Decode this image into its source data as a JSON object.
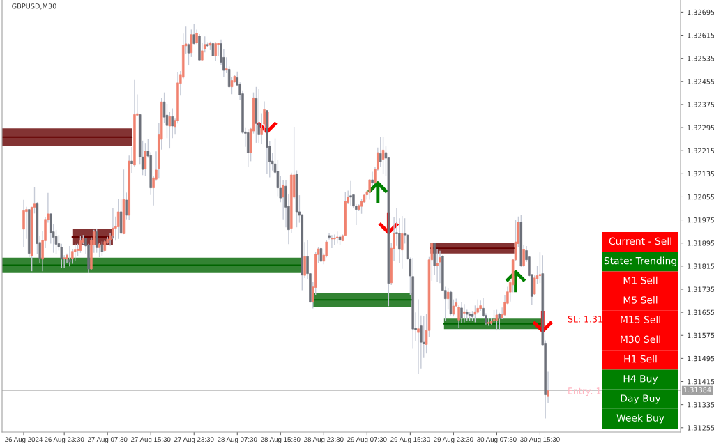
{
  "chart_data": [
    {
      "type": "candlestick",
      "title": "GBPUSD,M30",
      "colors": [
        "#f0826f",
        "#f0826f",
        "#6c7079",
        "#f0826f",
        "#f0826f",
        "#6c7079",
        "#6c7079",
        "#f0826f",
        "#f0826f",
        "#f0826f",
        "#6c7079",
        "#6c7079",
        "#6c7079",
        "#6c7079",
        "#6c7079",
        "#f0826f",
        "#f0826f",
        "#6c7079",
        "#f0826f",
        "#f0826f",
        "#f0826f",
        "#f0826f",
        "#f0826f",
        "#6c7079",
        "#6c7079",
        "#f0826f",
        "#f0826f",
        "#6c7079",
        "#f0826f",
        "#6c7079",
        "#f0826f",
        "#f0826f",
        "#f0826f",
        "#f0826f",
        "#f0826f",
        "#f0826f",
        "#6c7079",
        "#f0826f",
        "#6c7079",
        "#f0826f",
        "#6c7079",
        "#f0826f",
        "#f0826f",
        "#6c7079",
        "#6c7079",
        "#f0826f",
        "#6c7079",
        "#6c7079",
        "#f0826f",
        "#f0826f",
        "#f0826f",
        "#f0826f",
        "#6c7079",
        "#6c7079",
        "#f0826f",
        "#6c7079",
        "#f0826f",
        "#f0826f",
        "#f0826f",
        "#f0826f",
        "#f0826f",
        "#6c7079",
        "#f0826f",
        "#6c7079",
        "#f0826f",
        "#6c7079",
        "#f0826f",
        "#f0826f",
        "#6c7079",
        "#f0826f",
        "#6c7079",
        "#f0826f",
        "#f0826f",
        "#6c7079",
        "#6c7079",
        "#f0826f",
        "#6c7079",
        "#f0826f",
        "#f0826f",
        "#6c7079",
        "#6c7079",
        "#6c7079",
        "#6c7079",
        "#6c7079",
        "#f0826f",
        "#f0826f",
        "#6c7079",
        "#6c7079",
        "#f0826f",
        "#f0826f",
        "#6c7079",
        "#6c7079",
        "#6c7079",
        "#6c7079",
        "#6c7079",
        "#6c7079",
        "#f0826f",
        "#6c7079",
        "#6c7079",
        "#f0826f",
        "#f0826f",
        "#6c7079",
        "#6c7079",
        "#6c7079",
        "#f0826f",
        "#6c7079",
        "#6c7079",
        "#f0826f",
        "#f0826f",
        "#f0826f",
        "#6c7079",
        "#f0826f",
        "#f0826f",
        "#6c7079",
        "#f0826f",
        "#f0826f",
        "#f0826f",
        "#6c7079",
        "#f0826f",
        "#f0826f",
        "#f0826f",
        "#6c7079",
        "#6c7079",
        "#6c7079",
        "#f0826f",
        "#f0826f",
        "#f0826f",
        "#f0826f",
        "#f0826f",
        "#6c7079",
        "#f0826f",
        "#f0826f",
        "#6c7079",
        "#f0826f",
        "#6c7079",
        "#6c7079",
        "#f0826f",
        "#f0826f",
        "#6c7079",
        "#6c7079",
        "#f0826f",
        "#6c7079",
        "#6c7079",
        "#6c7079",
        "#6c7079",
        "#6c7079",
        "#f0826f",
        "#6c7079",
        "#6c7079",
        "#f0826f",
        "#f0826f",
        "#f0826f",
        "#6c7079",
        "#f0826f",
        "#f0826f",
        "#6c7079",
        "#6c7079",
        "#f0826f",
        "#6c7079",
        "#f0826f",
        "#f0826f",
        "#f0826f",
        "#6c7079",
        "#f0826f",
        "#6c7079",
        "#6c7079",
        "#6c7079",
        "#f0826f",
        "#f0826f",
        "#f0826f",
        "#6c7079",
        "#6c7079",
        "#f0826f",
        "#f0826f",
        "#f0826f",
        "#f0826f",
        "#6c7079",
        "#f0826f",
        "#f0826f",
        "#f0826f",
        "#f0826f",
        "#f0826f",
        "#f0826f",
        "#f0826f",
        "#6c7079",
        "#f0826f",
        "#6c7079",
        "#6c7079",
        "#6c7079",
        "#f0826f",
        "#f0826f",
        "#f0826f",
        "#6c7079",
        "#6c7079",
        "#f0826f"
      ],
      "x": [
        "2024-08-26T16:00",
        "2024-08-26T16:30",
        "2024-08-26T17:00",
        "2024-08-26T17:30",
        "2024-08-26T18:00",
        "2024-08-26T18:30",
        "2024-08-26T19:00",
        "2024-08-26T19:30",
        "2024-08-26T20:00",
        "2024-08-26T20:30",
        "2024-08-26T21:00",
        "2024-08-26T21:30",
        "2024-08-26T22:00",
        "2024-08-26T22:30",
        "2024-08-26T23:00",
        "2024-08-26T23:30",
        "2024-08-27T00:00",
        "2024-08-27T00:30",
        "2024-08-27T01:00",
        "2024-08-27T01:30",
        "2024-08-27T02:00",
        "2024-08-27T02:30",
        "2024-08-27T03:00",
        "2024-08-27T03:30",
        "2024-08-27T04:00",
        "2024-08-27T04:30",
        "2024-08-27T05:00",
        "2024-08-27T05:30",
        "2024-08-27T06:00",
        "2024-08-27T06:30",
        "2024-08-27T07:00",
        "2024-08-27T07:30",
        "2024-08-27T08:00",
        "2024-08-27T08:30",
        "2024-08-27T09:00",
        "2024-08-27T09:30",
        "2024-08-27T10:00",
        "2024-08-27T10:30",
        "2024-08-27T11:00",
        "2024-08-27T11:30",
        "2024-08-27T12:00",
        "2024-08-27T12:30",
        "2024-08-27T13:00",
        "2024-08-27T13:30",
        "2024-08-27T14:00",
        "2024-08-27T14:30",
        "2024-08-27T15:00",
        "2024-08-27T15:30",
        "2024-08-27T16:00",
        "2024-08-27T16:30",
        "2024-08-27T17:00",
        "2024-08-27T17:30",
        "2024-08-27T18:00",
        "2024-08-27T18:30",
        "2024-08-27T19:00",
        "2024-08-27T19:30",
        "2024-08-27T20:00",
        "2024-08-27T20:30",
        "2024-08-27T21:00",
        "2024-08-27T21:30",
        "2024-08-27T22:00",
        "2024-08-27T22:30",
        "2024-08-27T23:00",
        "2024-08-27T23:30",
        "2024-08-28T00:00",
        "2024-08-28T00:30",
        "2024-08-28T01:00",
        "2024-08-28T01:30",
        "2024-08-28T02:00",
        "2024-08-28T02:30",
        "2024-08-28T03:00",
        "2024-08-28T03:30",
        "2024-08-28T04:00",
        "2024-08-28T04:30",
        "2024-08-28T05:00",
        "2024-08-28T05:30",
        "2024-08-28T06:00",
        "2024-08-28T06:30",
        "2024-08-28T07:00",
        "2024-08-28T07:30",
        "2024-08-28T08:00",
        "2024-08-28T08:30",
        "2024-08-28T09:00",
        "2024-08-28T09:30",
        "2024-08-28T10:00",
        "2024-08-28T10:30",
        "2024-08-28T11:00",
        "2024-08-28T11:30",
        "2024-08-28T12:00",
        "2024-08-28T12:30",
        "2024-08-28T13:00",
        "2024-08-28T13:30",
        "2024-08-28T14:00",
        "2024-08-28T14:30",
        "2024-08-28T15:00",
        "2024-08-28T15:30",
        "2024-08-28T16:00",
        "2024-08-28T16:30",
        "2024-08-28T17:00",
        "2024-08-28T17:30",
        "2024-08-28T18:00",
        "2024-08-28T18:30",
        "2024-08-28T19:00",
        "2024-08-28T19:30",
        "2024-08-28T20:00",
        "2024-08-28T20:30",
        "2024-08-28T21:00",
        "2024-08-28T21:30",
        "2024-08-28T22:00",
        "2024-08-28T22:30",
        "2024-08-28T23:00",
        "2024-08-28T23:30",
        "2024-08-29T00:00",
        "2024-08-29T00:30",
        "2024-08-29T01:00",
        "2024-08-29T01:30",
        "2024-08-29T02:00",
        "2024-08-29T02:30",
        "2024-08-29T03:00",
        "2024-08-29T03:30",
        "2024-08-29T04:00",
        "2024-08-29T04:30",
        "2024-08-29T05:00",
        "2024-08-29T05:30",
        "2024-08-29T06:00",
        "2024-08-29T06:30",
        "2024-08-29T07:00",
        "2024-08-29T07:30",
        "2024-08-29T08:00",
        "2024-08-29T08:30",
        "2024-08-29T09:00",
        "2024-08-29T09:30",
        "2024-08-29T10:00",
        "2024-08-29T10:30",
        "2024-08-29T11:00",
        "2024-08-29T11:30",
        "2024-08-29T12:00",
        "2024-08-29T12:30",
        "2024-08-29T13:00",
        "2024-08-29T13:30",
        "2024-08-29T14:00",
        "2024-08-29T14:30",
        "2024-08-29T15:00",
        "2024-08-29T15:30",
        "2024-08-29T16:00",
        "2024-08-29T16:30",
        "2024-08-29T17:00",
        "2024-08-29T17:30",
        "2024-08-29T18:00",
        "2024-08-29T18:30",
        "2024-08-29T19:00",
        "2024-08-29T19:30",
        "2024-08-29T20:00",
        "2024-08-29T20:30",
        "2024-08-29T21:00",
        "2024-08-29T21:30",
        "2024-08-29T22:00",
        "2024-08-29T22:30",
        "2024-08-29T23:00",
        "2024-08-29T23:30",
        "2024-08-30T00:00",
        "2024-08-30T00:30",
        "2024-08-30T01:00",
        "2024-08-30T01:30",
        "2024-08-30T02:00",
        "2024-08-30T02:30",
        "2024-08-30T03:00",
        "2024-08-30T03:30",
        "2024-08-30T04:00",
        "2024-08-30T04:30",
        "2024-08-30T05:00",
        "2024-08-30T05:30",
        "2024-08-30T06:00",
        "2024-08-30T06:30",
        "2024-08-30T07:00",
        "2024-08-30T07:30",
        "2024-08-30T08:00",
        "2024-08-30T08:30",
        "2024-08-30T09:00",
        "2024-08-30T09:30",
        "2024-08-30T10:00",
        "2024-08-30T10:30",
        "2024-08-30T11:00",
        "2024-08-30T11:30",
        "2024-08-30T12:00",
        "2024-08-30T12:30",
        "2024-08-30T13:00",
        "2024-08-30T13:30",
        "2024-08-30T14:00",
        "2024-08-30T14:30",
        "2024-08-30T15:00",
        "2024-08-30T15:30",
        "2024-08-30T16:00",
        "2024-08-30T16:30",
        "2024-08-30T17:00"
      ],
      "ohlc": [
        [
          1.31943,
          1.32043,
          1.31883,
          1.32007
        ],
        [
          1.32004,
          1.32019,
          1.31911,
          1.32011
        ],
        [
          1.32011,
          1.32011,
          1.31847,
          1.31859
        ],
        [
          1.31851,
          1.32019,
          1.31799,
          1.32019
        ],
        [
          1.32019,
          1.32086,
          1.31999,
          1.3203
        ],
        [
          1.32031,
          1.32035,
          1.31859,
          1.31893
        ],
        [
          1.31897,
          1.31919,
          1.31827,
          1.31841
        ],
        [
          1.31839,
          1.31935,
          1.31799,
          1.31905
        ],
        [
          1.31903,
          1.31983,
          1.31879,
          1.31977
        ],
        [
          1.31975,
          1.32067,
          1.31967,
          1.31996
        ],
        [
          1.31996,
          1.31996,
          1.31895,
          1.3193
        ],
        [
          1.31934,
          1.31958,
          1.31863,
          1.31915
        ],
        [
          1.31918,
          1.31939,
          1.31859,
          1.31891
        ],
        [
          1.31893,
          1.31921,
          1.31871,
          1.31881
        ],
        [
          1.31881,
          1.31891,
          1.31811,
          1.31839
        ],
        [
          1.31841,
          1.31851,
          1.31811,
          1.31844
        ],
        [
          1.31839,
          1.31857,
          1.31827,
          1.31853
        ],
        [
          1.31837,
          1.31883,
          1.31816,
          1.31829
        ],
        [
          1.31841,
          1.31871,
          1.31825,
          1.31866
        ],
        [
          1.31865,
          1.31891,
          1.31835,
          1.31871
        ],
        [
          1.31869,
          1.31891,
          1.31851,
          1.31874
        ],
        [
          1.31869,
          1.31919,
          1.31863,
          1.31903
        ],
        [
          1.31898,
          1.31921,
          1.31893,
          1.3191
        ],
        [
          1.31911,
          1.31911,
          1.31859,
          1.31885
        ],
        [
          1.31889,
          1.31891,
          1.31792,
          1.31805
        ],
        [
          1.31805,
          1.31913,
          1.31805,
          1.31905
        ],
        [
          1.31889,
          1.31939,
          1.31863,
          1.31934
        ],
        [
          1.31934,
          1.31943,
          1.31863,
          1.31879
        ],
        [
          1.31879,
          1.31895,
          1.31847,
          1.31892
        ],
        [
          1.3189,
          1.31899,
          1.31851,
          1.31865
        ],
        [
          1.31869,
          1.31903,
          1.31867,
          1.319
        ],
        [
          1.31897,
          1.31915,
          1.31895,
          1.31908
        ],
        [
          1.31905,
          1.31927,
          1.31887,
          1.31921
        ],
        [
          1.31922,
          1.32014,
          1.31911,
          1.31947
        ],
        [
          1.31946,
          1.31985,
          1.31905,
          1.31953
        ],
        [
          1.31951,
          1.32047,
          1.31911,
          1.32003
        ],
        [
          1.32003,
          1.32047,
          1.31927,
          1.31929
        ],
        [
          1.31927,
          1.32148,
          1.31927,
          1.32046
        ],
        [
          1.32044,
          1.32068,
          1.31979,
          1.31991
        ],
        [
          1.31991,
          1.32196,
          1.31977,
          1.32179
        ],
        [
          1.32179,
          1.32226,
          1.3214,
          1.32169
        ],
        [
          1.32165,
          1.32458,
          1.3216,
          1.3234
        ],
        [
          1.32338,
          1.32408,
          1.32336,
          1.32343
        ],
        [
          1.3234,
          1.3234,
          1.32168,
          1.32193
        ],
        [
          1.32193,
          1.32248,
          1.32132,
          1.3215
        ],
        [
          1.32152,
          1.3224,
          1.32129,
          1.32213
        ],
        [
          1.32214,
          1.32254,
          1.32192,
          1.32196
        ],
        [
          1.32198,
          1.32208,
          1.32063,
          1.32086
        ],
        [
          1.32086,
          1.32126,
          1.32027,
          1.32121
        ],
        [
          1.32116,
          1.32211,
          1.32112,
          1.32148
        ],
        [
          1.32153,
          1.32308,
          1.3212,
          1.3227
        ],
        [
          1.32254,
          1.32396,
          1.3222,
          1.32384
        ],
        [
          1.32384,
          1.32415,
          1.32312,
          1.32331
        ],
        [
          1.32338,
          1.32376,
          1.3226,
          1.32302
        ],
        [
          1.323,
          1.32348,
          1.32224,
          1.32333
        ],
        [
          1.32333,
          1.3236,
          1.3226,
          1.323
        ],
        [
          1.32298,
          1.32324,
          1.32272,
          1.3232
        ],
        [
          1.32319,
          1.32485,
          1.32311,
          1.3245
        ],
        [
          1.32448,
          1.32489,
          1.32407,
          1.32479
        ],
        [
          1.32469,
          1.32619,
          1.32463,
          1.32581
        ],
        [
          1.32578,
          1.32643,
          1.32553,
          1.32585
        ],
        [
          1.32583,
          1.32585,
          1.32514,
          1.32553
        ],
        [
          1.32554,
          1.32633,
          1.32541,
          1.32617
        ],
        [
          1.32617,
          1.32653,
          1.32585,
          1.32586
        ],
        [
          1.32589,
          1.32633,
          1.32586,
          1.32621
        ],
        [
          1.32612,
          1.32617,
          1.32529,
          1.32529
        ],
        [
          1.32529,
          1.32586,
          1.32527,
          1.32561
        ],
        [
          1.32567,
          1.32609,
          1.32557,
          1.32583
        ],
        [
          1.32583,
          1.32589,
          1.32575,
          1.32578
        ],
        [
          1.3258,
          1.32591,
          1.32565,
          1.32588
        ],
        [
          1.32586,
          1.32589,
          1.32543,
          1.32543
        ],
        [
          1.32543,
          1.3259,
          1.32527,
          1.32586
        ],
        [
          1.32582,
          1.32588,
          1.32543,
          1.32588
        ],
        [
          1.32586,
          1.32598,
          1.32514,
          1.32521
        ],
        [
          1.32538,
          1.32564,
          1.32471,
          1.32493
        ],
        [
          1.32494,
          1.32537,
          1.32485,
          1.32499
        ],
        [
          1.32497,
          1.32505,
          1.32436,
          1.32436
        ],
        [
          1.32436,
          1.32469,
          1.32412,
          1.32458
        ],
        [
          1.32453,
          1.32477,
          1.32452,
          1.32473
        ],
        [
          1.32468,
          1.32487,
          1.32442,
          1.32442
        ],
        [
          1.32446,
          1.3245,
          1.32391,
          1.32408
        ],
        [
          1.32412,
          1.32422,
          1.32274,
          1.32278
        ],
        [
          1.3228,
          1.32294,
          1.3223,
          1.32275
        ],
        [
          1.32277,
          1.32288,
          1.3216,
          1.32208
        ],
        [
          1.32208,
          1.32294,
          1.3218,
          1.3229
        ],
        [
          1.32283,
          1.32415,
          1.32276,
          1.32398
        ],
        [
          1.32396,
          1.32434,
          1.32244,
          1.32309
        ],
        [
          1.32309,
          1.32428,
          1.32244,
          1.3227
        ],
        [
          1.3227,
          1.32343,
          1.3224,
          1.32292
        ],
        [
          1.32307,
          1.32384,
          1.3228,
          1.32357
        ],
        [
          1.32354,
          1.32354,
          1.32136,
          1.32226
        ],
        [
          1.3223,
          1.32246,
          1.32124,
          1.32177
        ],
        [
          1.32179,
          1.32206,
          1.32148,
          1.32168
        ],
        [
          1.32169,
          1.32256,
          1.32136,
          1.3214
        ],
        [
          1.32143,
          1.32182,
          1.32059,
          1.32086
        ],
        [
          1.32085,
          1.32126,
          1.32038,
          1.32051
        ],
        [
          1.32054,
          1.32112,
          1.31979,
          1.32095
        ],
        [
          1.32092,
          1.32112,
          1.31951,
          1.32019
        ],
        [
          1.32022,
          1.32063,
          1.31893,
          1.31941
        ],
        [
          1.31946,
          1.32137,
          1.31931,
          1.32131
        ],
        [
          1.32054,
          1.32296,
          1.32049,
          1.32131
        ],
        [
          1.32134,
          1.32145,
          1.31951,
          1.32003
        ],
        [
          1.32003,
          1.32059,
          1.31967,
          1.31991
        ],
        [
          1.31993,
          1.31993,
          1.31733,
          1.31784
        ],
        [
          1.31783,
          1.31897,
          1.31775,
          1.31848
        ],
        [
          1.31848,
          1.31905,
          1.31771,
          1.31789
        ],
        [
          1.31789,
          1.31789,
          1.3169,
          1.3169
        ],
        [
          1.3169,
          1.3176,
          1.3167,
          1.31743
        ],
        [
          1.31741,
          1.31863,
          1.31715,
          1.31856
        ],
        [
          1.31855,
          1.31879,
          1.31827,
          1.31875
        ],
        [
          1.31876,
          1.31877,
          1.31831,
          1.31832
        ],
        [
          1.31832,
          1.31858,
          1.31823,
          1.31853
        ],
        [
          1.31851,
          1.31903,
          1.31847,
          1.31899
        ],
        [
          1.31921,
          1.31929,
          1.31909,
          1.31915
        ],
        [
          1.31909,
          1.31921,
          1.31879,
          1.31912
        ],
        [
          1.31909,
          1.31923,
          1.31891,
          1.31912
        ],
        [
          1.31913,
          1.31933,
          1.31895,
          1.31916
        ],
        [
          1.31916,
          1.31921,
          1.31891,
          1.31905
        ],
        [
          1.31903,
          1.31923,
          1.31903,
          1.31921
        ],
        [
          1.31922,
          1.32071,
          1.31921,
          1.32039
        ],
        [
          1.32035,
          1.32075,
          1.32031,
          1.32055
        ],
        [
          1.32059,
          1.32108,
          1.32027,
          1.32054
        ],
        [
          1.32062,
          1.32062,
          1.32019,
          1.32023
        ],
        [
          1.32023,
          1.32027,
          1.31959,
          1.32011
        ],
        [
          1.32011,
          1.32027,
          1.32007,
          1.32025
        ],
        [
          1.32022,
          1.32047,
          1.31998,
          1.32039
        ],
        [
          1.32037,
          1.32063,
          1.32035,
          1.32061
        ],
        [
          1.32062,
          1.32075,
          1.32047,
          1.32073
        ],
        [
          1.32071,
          1.32115,
          1.32047,
          1.32114
        ],
        [
          1.32114,
          1.3214,
          1.32095,
          1.32103
        ],
        [
          1.32105,
          1.32156,
          1.32103,
          1.3215
        ],
        [
          1.3215,
          1.32224,
          1.32148,
          1.32208
        ],
        [
          1.32205,
          1.3226,
          1.3216,
          1.32177
        ],
        [
          1.32185,
          1.3226,
          1.32136,
          1.32217
        ],
        [
          1.32208,
          1.32228,
          1.32128,
          1.32189
        ],
        [
          1.3219,
          1.32192,
          1.31678,
          1.31755
        ],
        [
          1.31757,
          1.31895,
          1.31751,
          1.31877
        ],
        [
          1.31875,
          1.31983,
          1.31835,
          1.31929
        ],
        [
          1.31931,
          1.32014,
          1.31887,
          1.31927
        ],
        [
          1.31929,
          1.31979,
          1.31827,
          1.31873
        ],
        [
          1.31871,
          1.31987,
          1.31807,
          1.31927
        ],
        [
          1.31927,
          1.31979,
          1.31895,
          1.31923
        ],
        [
          1.31923,
          1.31923,
          1.31839,
          1.3184
        ],
        [
          1.3184,
          1.31843,
          1.31715,
          1.31781
        ],
        [
          1.31779,
          1.31842,
          1.3153,
          1.31597
        ],
        [
          1.31601,
          1.31653,
          1.31558,
          1.31595
        ],
        [
          1.31585,
          1.31698,
          1.31442,
          1.31598
        ],
        [
          1.31608,
          1.31642,
          1.31462,
          1.31551
        ],
        [
          1.31551,
          1.3164,
          1.31498,
          1.31547
        ],
        [
          1.31543,
          1.31648,
          1.31514,
          1.31592
        ],
        [
          1.31592,
          1.31845,
          1.3157,
          1.31837
        ],
        [
          1.31837,
          1.31895,
          1.31766,
          1.31895
        ],
        [
          1.31895,
          1.31895,
          1.31786,
          1.31816
        ],
        [
          1.31816,
          1.31872,
          1.31762,
          1.31825
        ],
        [
          1.31829,
          1.31867,
          1.31758,
          1.31845
        ],
        [
          1.31849,
          1.31851,
          1.3173,
          1.31731
        ],
        [
          1.31731,
          1.31742,
          1.31626,
          1.31702
        ],
        [
          1.31702,
          1.31738,
          1.31666,
          1.31725
        ],
        [
          1.31725,
          1.31729,
          1.31646,
          1.3165
        ],
        [
          1.31648,
          1.31698,
          1.31642,
          1.31677
        ],
        [
          1.31677,
          1.31701,
          1.31674,
          1.31688
        ],
        [
          1.31628,
          1.31677,
          1.31602,
          1.31672
        ],
        [
          1.3167,
          1.3169,
          1.3162,
          1.31635
        ],
        [
          1.31652,
          1.31682,
          1.31622,
          1.31657
        ],
        [
          1.31656,
          1.31662,
          1.31626,
          1.31648
        ],
        [
          1.31649,
          1.31656,
          1.31626,
          1.31644
        ],
        [
          1.31649,
          1.31658,
          1.31626,
          1.3164
        ],
        [
          1.31648,
          1.31677,
          1.31622,
          1.31657
        ],
        [
          1.31655,
          1.31698,
          1.3165,
          1.31669
        ],
        [
          1.31667,
          1.31694,
          1.31662,
          1.31678
        ],
        [
          1.31669,
          1.31704,
          1.3164,
          1.31642
        ],
        [
          1.31644,
          1.3165,
          1.31614,
          1.31617
        ],
        [
          1.31616,
          1.31634,
          1.3161,
          1.3162
        ],
        [
          1.31616,
          1.31634,
          1.31614,
          1.31625
        ],
        [
          1.31625,
          1.31661,
          1.31618,
          1.3163
        ],
        [
          1.31626,
          1.31662,
          1.31594,
          1.31646
        ],
        [
          1.31649,
          1.31652,
          1.31594,
          1.31633
        ],
        [
          1.31635,
          1.3167,
          1.31633,
          1.31647
        ],
        [
          1.31646,
          1.31714,
          1.31644,
          1.3169
        ],
        [
          1.31686,
          1.31742,
          1.31685,
          1.31726
        ],
        [
          1.31725,
          1.31766,
          1.31694,
          1.31758
        ],
        [
          1.3175,
          1.31839,
          1.31726,
          1.31837
        ],
        [
          1.31837,
          1.31973,
          1.31835,
          1.31899
        ],
        [
          1.31893,
          1.31985,
          1.31883,
          1.31967
        ],
        [
          1.31967,
          1.31989,
          1.31814,
          1.31816
        ],
        [
          1.31816,
          1.31887,
          1.31814,
          1.31872
        ],
        [
          1.31869,
          1.31883,
          1.31831,
          1.31837
        ],
        [
          1.31847,
          1.31848,
          1.31781,
          1.31782
        ],
        [
          1.31786,
          1.31786,
          1.31682,
          1.3171
        ],
        [
          1.31718,
          1.31781,
          1.31717,
          1.31774
        ],
        [
          1.3177,
          1.31814,
          1.31754,
          1.31782
        ],
        [
          1.31782,
          1.31861,
          1.31758,
          1.31786
        ],
        [
          1.31789,
          1.31851,
          1.31542,
          1.31542
        ],
        [
          1.31548,
          1.31556,
          1.31289,
          1.31369
        ],
        [
          1.31365,
          1.31447,
          1.31343,
          1.31384
        ]
      ],
      "series": [
        {
          "type": "line",
          "x": [
            "2024-08-26T12:00",
            "2024-08-27T12:00"
          ],
          "values": [
            1.32262,
            1.32262
          ],
          "lower": [
            1.32232,
            1.32232
          ],
          "upper": [
            1.32292,
            1.32292
          ],
          "color": "#640000"
        },
        {
          "type": "line",
          "x": [
            "2024-08-27T01:00",
            "2024-08-27T08:30"
          ],
          "values": [
            1.31916,
            1.31916
          ],
          "lower": [
            1.31888,
            1.31888
          ],
          "upper": [
            1.31943,
            1.31943
          ],
          "color": "#640000"
        },
        {
          "type": "line",
          "x": [
            "2024-08-26T12:00",
            "2024-08-28T19:15"
          ],
          "values": [
            1.31818,
            1.31818
          ],
          "lower": [
            1.31791,
            1.31791
          ],
          "upper": [
            1.31844,
            1.31844
          ],
          "color": "#006400"
        },
        {
          "type": "line",
          "x": [
            "2024-08-28T21:30",
            "2024-08-29T15:45"
          ],
          "values": [
            1.31698,
            1.31698
          ],
          "lower": [
            1.31674,
            1.31674
          ],
          "upper": [
            1.31722,
            1.31722
          ],
          "color": "#006400"
        },
        {
          "type": "line",
          "x": [
            "2024-08-29T19:15",
            "2024-08-30T10:45"
          ],
          "values": [
            1.31877,
            1.31877
          ],
          "lower": [
            1.31859,
            1.31859
          ],
          "upper": [
            1.31895,
            1.31895
          ],
          "color": "#640000"
        },
        {
          "type": "line",
          "x": [
            "2024-08-29T21:45",
            "2024-08-30T16:00"
          ],
          "values": [
            1.31615,
            1.31615
          ],
          "lower": [
            1.31597,
            1.31597
          ],
          "upper": [
            1.31633,
            1.31633
          ],
          "color": "#006400"
        }
      ],
      "ref_lines": [
        {
          "axis": "y",
          "value": 1.31384,
          "label": "1.31384",
          "color": "#c8c8c8"
        }
      ],
      "annotations": [
        "SL: 1.31",
        "Entry: 1"
      ],
      "xlim": [
        "2024-08-26T12:00",
        "2024-08-31T17:30"
      ],
      "xticks": [
        {
          "value": "2024-08-26T16:00",
          "label": "26 Aug 2024"
        },
        {
          "value": "2024-08-26T23:30",
          "label": "26 Aug 23:30"
        },
        {
          "value": "2024-08-27T07:30",
          "label": "27 Aug 07:30"
        },
        {
          "value": "2024-08-27T15:30",
          "label": "27 Aug 15:30"
        },
        {
          "value": "2024-08-27T23:30",
          "label": "27 Aug 23:30"
        },
        {
          "value": "2024-08-28T07:30",
          "label": "28 Aug 07:30"
        },
        {
          "value": "2024-08-28T15:30",
          "label": "28 Aug 15:30"
        },
        {
          "value": "2024-08-28T23:30",
          "label": "28 Aug 23:30"
        },
        {
          "value": "2024-08-29T07:30",
          "label": "29 Aug 07:30"
        },
        {
          "value": "2024-08-29T15:30",
          "label": "29 Aug 15:30"
        },
        {
          "value": "2024-08-29T23:30",
          "label": "29 Aug 23:30"
        },
        {
          "value": "2024-08-30T07:30",
          "label": "30 Aug 07:30"
        },
        {
          "value": "2024-08-30T15:30",
          "label": "30 Aug 15:30"
        }
      ],
      "ylim": [
        1.3124,
        1.32737
      ],
      "yticks": [
        1.31255,
        1.31335,
        1.31415,
        1.31495,
        1.31575,
        1.31655,
        1.31735,
        1.31815,
        1.31895,
        1.31975,
        1.32055,
        1.32135,
        1.32215,
        1.32295,
        1.32375,
        1.32455,
        1.32535,
        1.32615,
        1.32695
      ]
    },
    {
      "type": "other",
      "annotations": [
        "Current - Sell",
        "State: Trending",
        "M1 Sell",
        "M5 Sell",
        "M15 Sell",
        "M30 Sell",
        "H1 Sell",
        "H4 Buy",
        "Day Buy",
        "Week Buy"
      ],
      "colors": [
        "#ff0000",
        "#008000",
        "#ff0000",
        "#ff0000",
        "#ff0000",
        "#ff0000",
        "#ff0000",
        "#008000",
        "#008000",
        "#008000"
      ]
    }
  ]
}
